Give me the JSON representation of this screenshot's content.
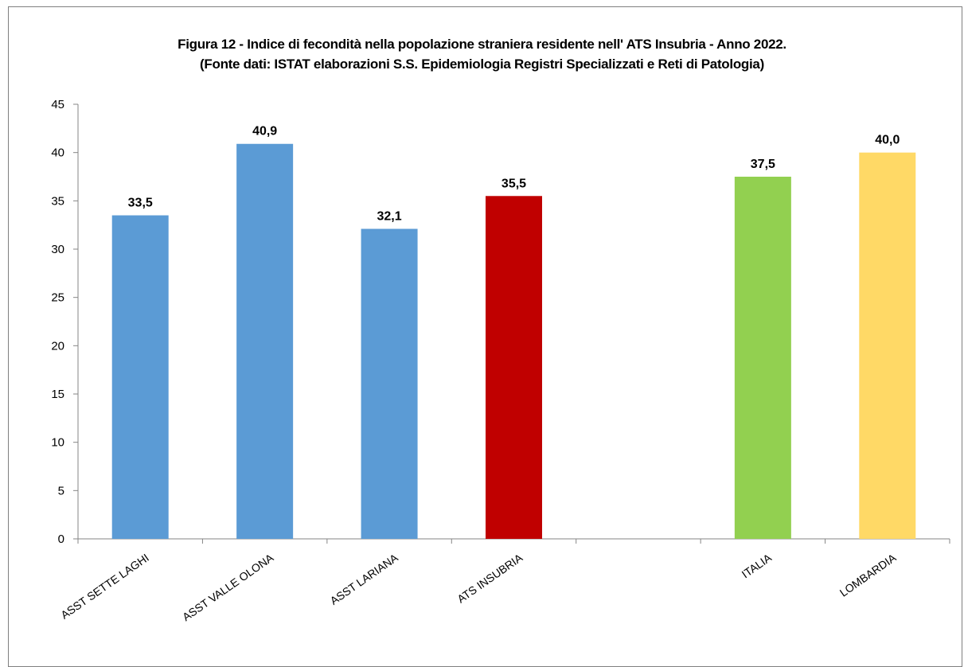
{
  "chart_data": {
    "type": "bar",
    "title_line1": "Figura 12 - Indice di fecondità nella popolazione straniera residente nell' ATS Insubria  - Anno 2022.",
    "title_line2": "(Fonte dati: ISTAT elaborazioni S.S. Epidemiologia Registri Specializzati e Reti di Patologia)",
    "categories": [
      "ASST SETTE LAGHI",
      "ASST VALLE OLONA",
      "ASST LARIANA",
      "ATS INSUBRIA",
      "",
      "ITALIA",
      "LOMBARDIA"
    ],
    "values": [
      33.5,
      40.9,
      32.1,
      35.5,
      null,
      37.5,
      40.0
    ],
    "value_labels": [
      "33,5",
      "40,9",
      "32,1",
      "35,5",
      "",
      "37,5",
      "40,0"
    ],
    "colors": [
      "#5b9bd5",
      "#5b9bd5",
      "#5b9bd5",
      "#c00000",
      "",
      "#92d050",
      "#ffd966"
    ],
    "ylim": [
      0,
      45
    ],
    "yticks": [
      0,
      5,
      10,
      15,
      20,
      25,
      30,
      35,
      40,
      45
    ],
    "xlabel": "",
    "ylabel": "",
    "grid": false,
    "legend": "none"
  }
}
